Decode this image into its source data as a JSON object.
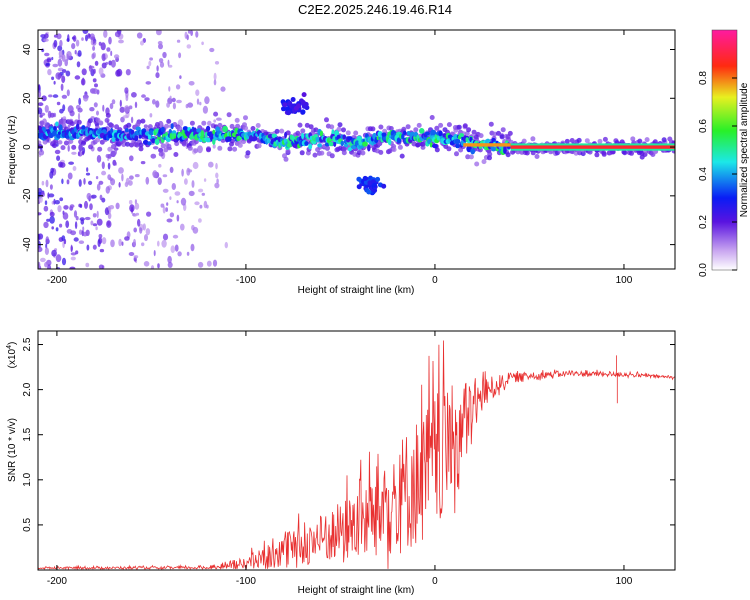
{
  "title": "C2E2.2025.246.19.46.R14",
  "chart_data": [
    {
      "type": "heatmap",
      "name": "spectrogram",
      "xlabel": "Height of straight line (km)",
      "ylabel": "Frequency (Hz)",
      "xlim": [
        -210,
        127
      ],
      "ylim": [
        -50,
        48
      ],
      "xticks": [
        -200,
        -100,
        0,
        100
      ],
      "yticks": [
        -40,
        -20,
        0,
        20,
        40
      ],
      "ridge": [
        {
          "x": -205,
          "f": 6
        },
        {
          "x": -150,
          "f": 5
        },
        {
          "x": -100,
          "f": 5
        },
        {
          "x": -80,
          "f": 2
        },
        {
          "x": -60,
          "f": 4
        },
        {
          "x": -40,
          "f": 1
        },
        {
          "x": -30,
          "f": 4
        },
        {
          "x": -10,
          "f": 4
        },
        {
          "x": 10,
          "f": 3
        },
        {
          "x": 20,
          "f": 1
        },
        {
          "x": 40,
          "f": 0
        },
        {
          "x": 127,
          "f": 0
        }
      ],
      "blobs": [
        {
          "x": -75,
          "f": 17,
          "amp": 0.2
        },
        {
          "x": -35,
          "f": -15,
          "amp": 0.25
        }
      ],
      "colorbar": {
        "label": "Normalized spectral amplitude",
        "range": [
          0,
          1
        ],
        "ticks": [
          "0.0",
          "0.2",
          "0.4",
          "0.6",
          "0.8"
        ],
        "tick_values": [
          0.0,
          0.2,
          0.4,
          0.6,
          0.8
        ]
      }
    },
    {
      "type": "line",
      "name": "snr",
      "xlabel": "Height of straight line (km)",
      "ylabel": "SNR (10 * v/v)",
      "scale_label": "(x10",
      "scale_exp": "4",
      "scale_close": ")",
      "xlim": [
        -210,
        127
      ],
      "ylim": [
        0,
        2.65
      ],
      "xticks": [
        -200,
        -100,
        0,
        100
      ],
      "yticks": [
        "0.5",
        "1.0",
        "1.5",
        "2.0",
        "2.5"
      ],
      "ytick_values": [
        0.5,
        1.0,
        1.5,
        2.0,
        2.5
      ],
      "color": "#e83030",
      "envelope": [
        {
          "x": -210,
          "base": 0.02,
          "amp": 0.02
        },
        {
          "x": -120,
          "base": 0.02,
          "amp": 0.03
        },
        {
          "x": -100,
          "base": 0.05,
          "amp": 0.15
        },
        {
          "x": -80,
          "base": 0.15,
          "amp": 0.35
        },
        {
          "x": -60,
          "base": 0.25,
          "amp": 0.55
        },
        {
          "x": -40,
          "base": 0.4,
          "amp": 0.8
        },
        {
          "x": -20,
          "base": 0.6,
          "amp": 1.3
        },
        {
          "x": 0,
          "base": 0.9,
          "amp": 1.6
        },
        {
          "x": 15,
          "base": 1.4,
          "amp": 1.1
        },
        {
          "x": 25,
          "base": 1.9,
          "amp": 0.35
        },
        {
          "x": 40,
          "base": 2.12,
          "amp": 0.1
        },
        {
          "x": 70,
          "base": 2.17,
          "amp": 0.06
        },
        {
          "x": 100,
          "base": 2.16,
          "amp": 0.05
        },
        {
          "x": 127,
          "base": 2.13,
          "amp": 0.03
        }
      ],
      "spikes": [
        {
          "x": 96,
          "y": 2.38
        },
        {
          "x": 96.5,
          "y": 1.85
        }
      ]
    }
  ]
}
